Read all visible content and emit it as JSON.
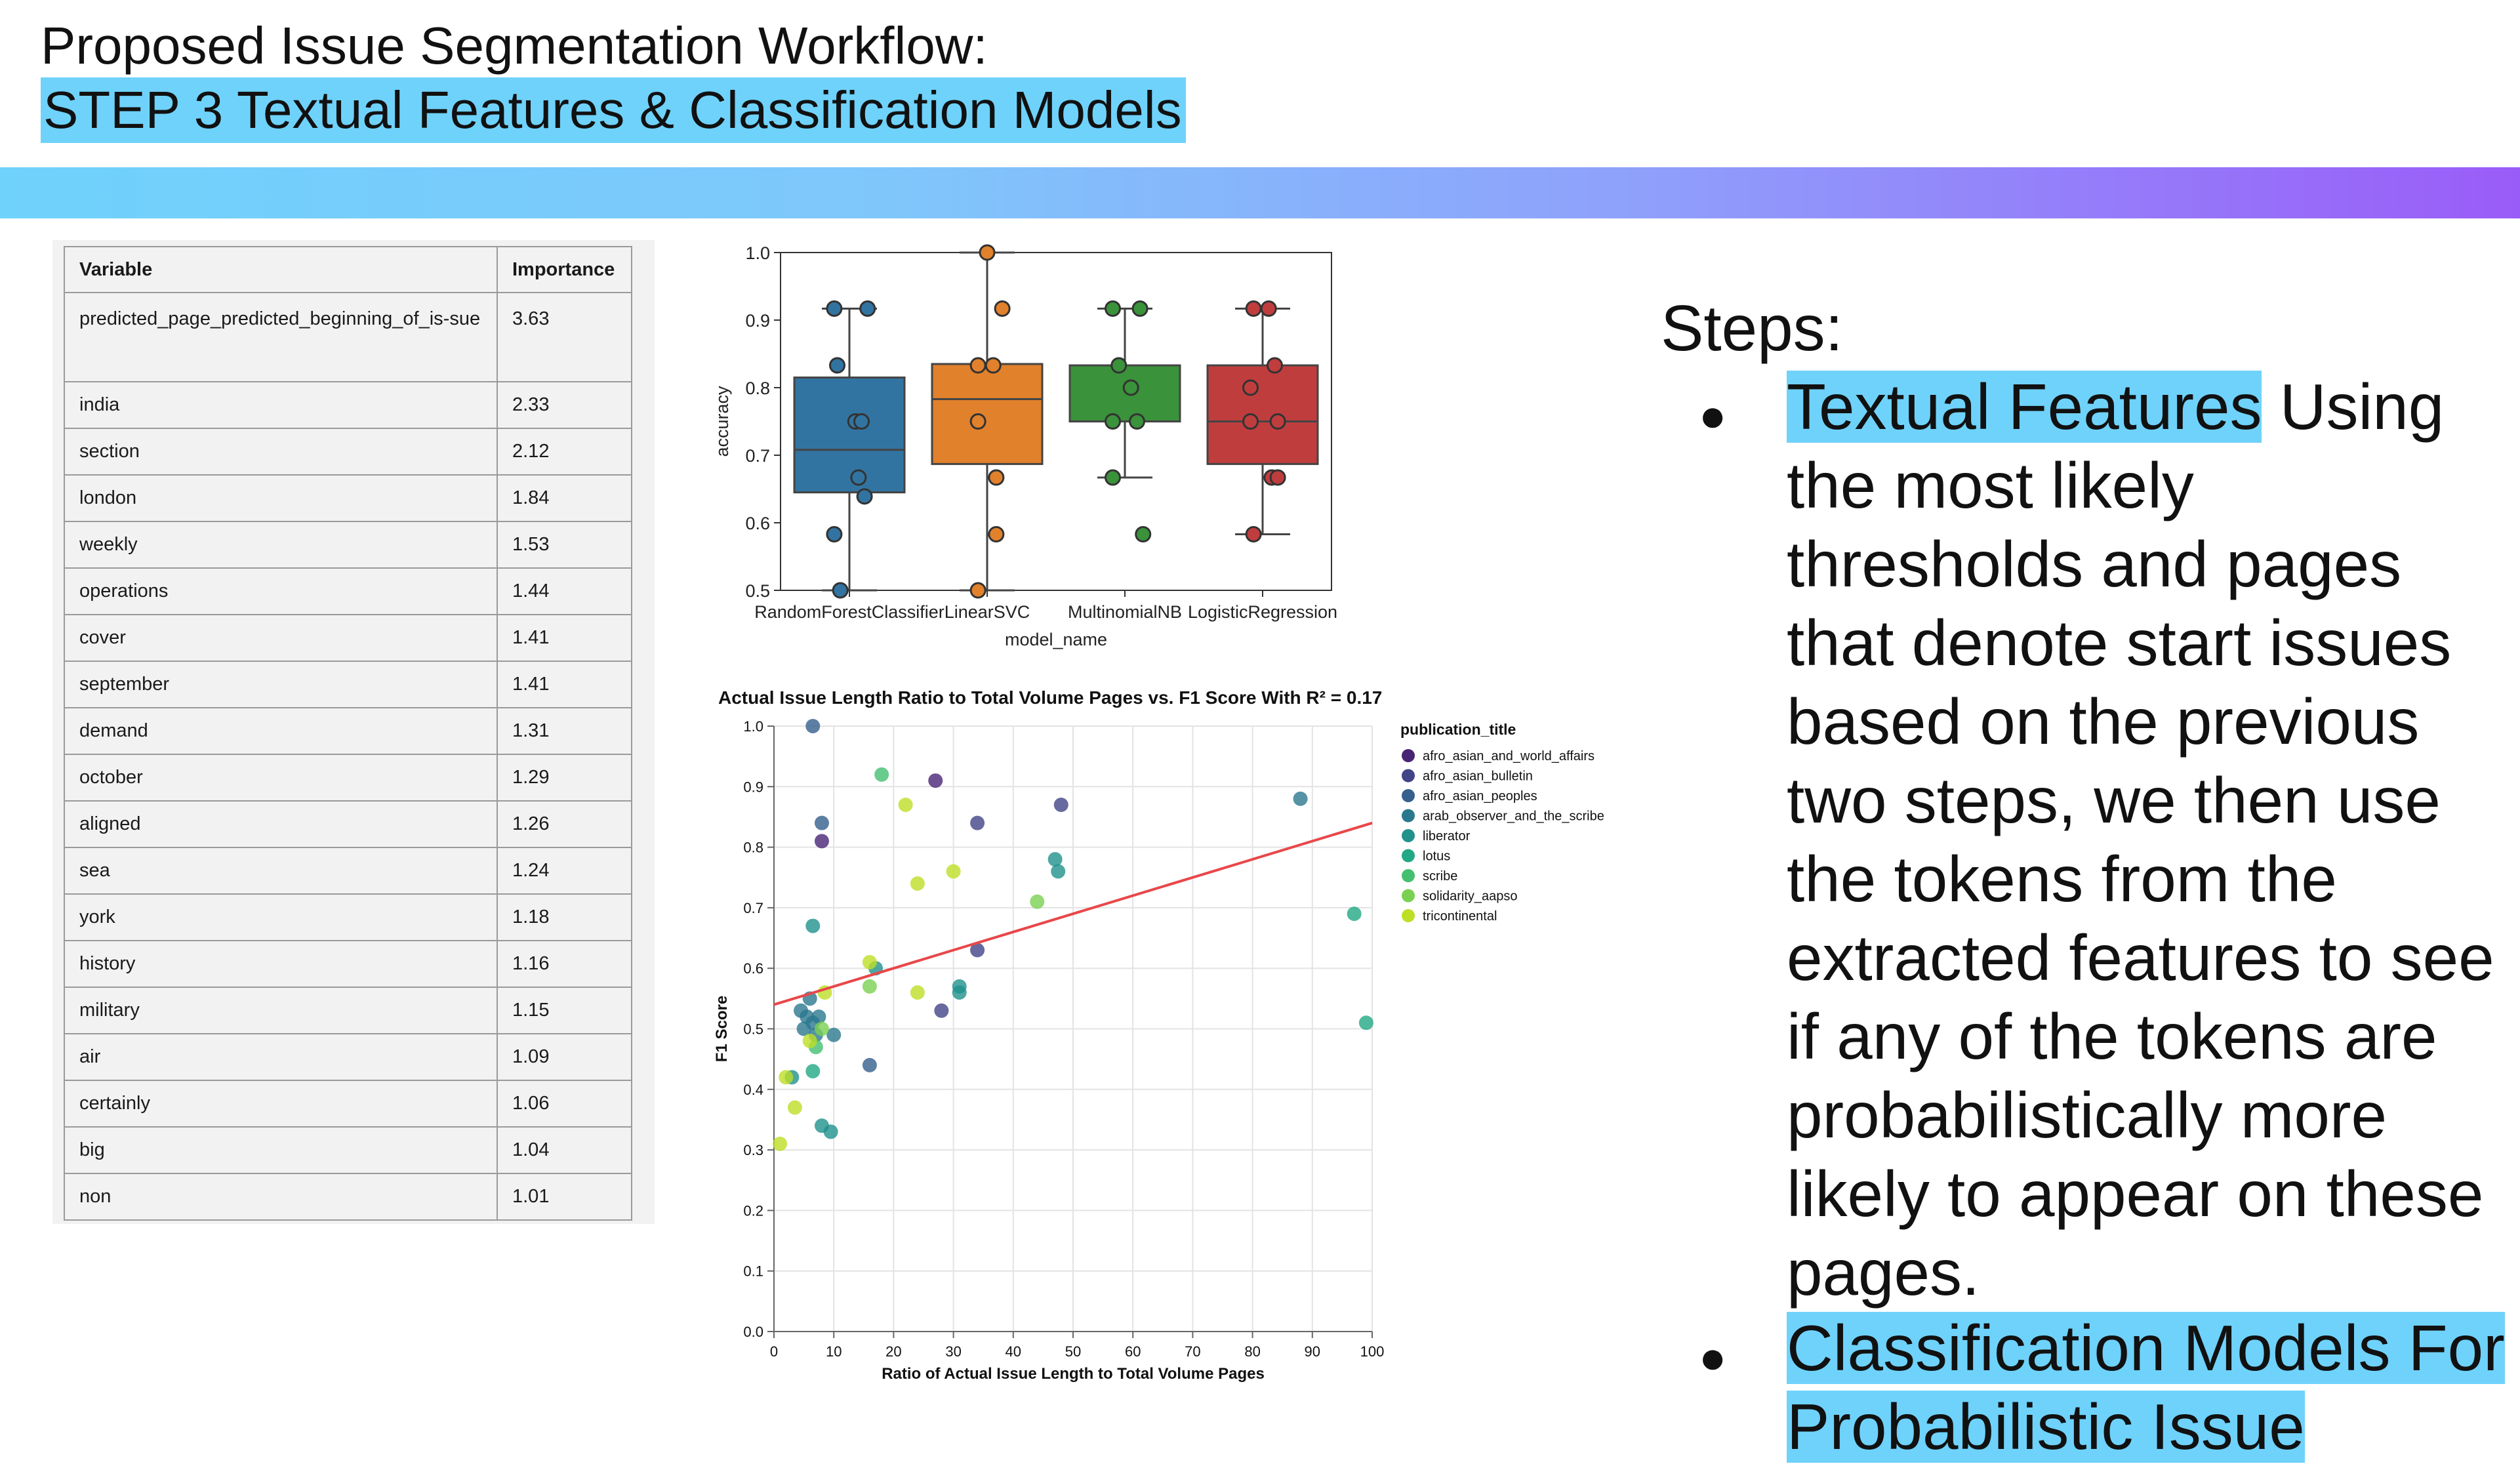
{
  "slide": {
    "title_line1": "Proposed Issue Segmentation Workflow:",
    "title_line2": "STEP 3 Textual Features & Classification Models"
  },
  "importance_table": {
    "headers": [
      "Variable",
      "Importance"
    ],
    "rows": [
      [
        "predicted_page_predicted_beginning_of_is-sue",
        "3.63"
      ],
      [
        "india",
        "2.33"
      ],
      [
        "section",
        "2.12"
      ],
      [
        "london",
        "1.84"
      ],
      [
        "weekly",
        "1.53"
      ],
      [
        "operations",
        "1.44"
      ],
      [
        "cover",
        "1.41"
      ],
      [
        "september",
        "1.41"
      ],
      [
        "demand",
        "1.31"
      ],
      [
        "october",
        "1.29"
      ],
      [
        "aligned",
        "1.26"
      ],
      [
        "sea",
        "1.24"
      ],
      [
        "york",
        "1.18"
      ],
      [
        "history",
        "1.16"
      ],
      [
        "military",
        "1.15"
      ],
      [
        "air",
        "1.09"
      ],
      [
        "certainly",
        "1.06"
      ],
      [
        "big",
        "1.04"
      ],
      [
        "non",
        "1.01"
      ]
    ]
  },
  "steps": {
    "heading": "Steps:",
    "bullet1_highlight": "Textual Features",
    "bullet1_text": " Using the most likely thresholds and pages that denote start issues based on the previous two steps, we then use the tokens from the extracted features to see if any of the tokens are probabilistically more likely to appear on these pages.",
    "bullet2_highlight": "Classification Models For Probabilistic Issue"
  },
  "colors": {
    "highlight": "#6fd2fb",
    "regression_line": "#e8474a"
  },
  "chart_data": [
    {
      "type": "box",
      "xlabel": "model_name",
      "ylabel": "accuracy",
      "ylim": [
        0.5,
        1.0
      ],
      "yticks": [
        "0.5",
        "0.6",
        "0.7",
        "0.8",
        "0.9",
        "1.0"
      ],
      "categories": [
        "RandomForestClassifier",
        "LinearSVC",
        "MultinomialNB",
        "LogisticRegression"
      ],
      "series": [
        {
          "name": "RandomForestClassifier",
          "color": "#3274a1",
          "q1": 0.645,
          "median": 0.708,
          "q3": 0.815,
          "whisker_low": 0.5,
          "whisker_high": 0.917,
          "points": [
            [
              -0.05,
              0.917
            ],
            [
              0.06,
              0.917
            ],
            [
              -0.04,
              0.833
            ],
            [
              0.02,
              0.75
            ],
            [
              0.04,
              0.75
            ],
            [
              0.03,
              0.667
            ],
            [
              0.05,
              0.639
            ],
            [
              -0.05,
              0.583
            ],
            [
              -0.03,
              0.5
            ]
          ]
        },
        {
          "name": "LinearSVC",
          "color": "#e1812c",
          "q1": 0.687,
          "median": 0.783,
          "q3": 0.835,
          "whisker_low": 0.5,
          "whisker_high": 1.0,
          "points": [
            [
              0.0,
              1.0
            ],
            [
              0.05,
              0.917
            ],
            [
              -0.03,
              0.833
            ],
            [
              0.02,
              0.833
            ],
            [
              -0.03,
              0.75
            ],
            [
              0.03,
              0.667
            ],
            [
              0.03,
              0.583
            ],
            [
              -0.03,
              0.5
            ]
          ]
        },
        {
          "name": "MultinomialNB",
          "color": "#3a923a",
          "q1": 0.75,
          "median": 0.75,
          "q3": 0.833,
          "whisker_low": 0.667,
          "whisker_high": 0.917,
          "points": [
            [
              -0.04,
              0.917
            ],
            [
              0.05,
              0.917
            ],
            [
              -0.02,
              0.833
            ],
            [
              0.02,
              0.8
            ],
            [
              -0.04,
              0.75
            ],
            [
              0.04,
              0.75
            ],
            [
              -0.04,
              0.667
            ],
            [
              0.06,
              0.583
            ]
          ]
        },
        {
          "name": "LogisticRegression",
          "color": "#c03d3e",
          "q1": 0.687,
          "median": 0.75,
          "q3": 0.833,
          "whisker_low": 0.583,
          "whisker_high": 0.917,
          "points": [
            [
              -0.03,
              0.917
            ],
            [
              0.02,
              0.917
            ],
            [
              0.04,
              0.833
            ],
            [
              -0.04,
              0.8
            ],
            [
              -0.04,
              0.75
            ],
            [
              0.05,
              0.75
            ],
            [
              0.03,
              0.667
            ],
            [
              0.05,
              0.667
            ],
            [
              -0.03,
              0.583
            ]
          ]
        }
      ]
    },
    {
      "type": "scatter",
      "title": "Actual Issue Length Ratio to Total Volume Pages vs. F1 Score With R² = 0.17",
      "xlabel": "Ratio of Actual Issue Length to Total Volume Pages",
      "ylabel": "F1 Score",
      "xlim": [
        0,
        100
      ],
      "ylim": [
        0.0,
        1.0
      ],
      "xticks": [
        "0",
        "10",
        "20",
        "30",
        "40",
        "50",
        "60",
        "70",
        "80",
        "90",
        "100"
      ],
      "yticks": [
        "0.0",
        "0.1",
        "0.2",
        "0.3",
        "0.4",
        "0.5",
        "0.6",
        "0.7",
        "0.8",
        "0.9",
        "1.0"
      ],
      "grid": true,
      "legend_title": "publication_title",
      "legend_position": "right",
      "series": [
        {
          "name": "afro_asian_and_world_affairs",
          "color": "#482475",
          "points": [
            [
              27,
              0.91
            ],
            [
              8,
              0.81
            ]
          ]
        },
        {
          "name": "afro_asian_bulletin",
          "color": "#414487",
          "points": [
            [
              48,
              0.87
            ],
            [
              34,
              0.84
            ],
            [
              28,
              0.53
            ],
            [
              34,
              0.63
            ]
          ]
        },
        {
          "name": "afro_asian_peoples",
          "color": "#355f8d",
          "points": [
            [
              6.5,
              1.0
            ],
            [
              8,
              0.84
            ],
            [
              16,
              0.44
            ]
          ]
        },
        {
          "name": "arab_observer_and_the_scribe",
          "color": "#2a788e",
          "points": [
            [
              88,
              0.88
            ],
            [
              5,
              0.5
            ],
            [
              5.5,
              0.52
            ],
            [
              6.5,
              0.51
            ],
            [
              7,
              0.49
            ],
            [
              4.5,
              0.53
            ],
            [
              10,
              0.49
            ],
            [
              6,
              0.55
            ],
            [
              7.5,
              0.52
            ]
          ]
        },
        {
          "name": "liberator",
          "color": "#21918c",
          "points": [
            [
              47,
              0.78
            ],
            [
              47.5,
              0.76
            ],
            [
              31,
              0.57
            ],
            [
              31,
              0.56
            ],
            [
              6.5,
              0.67
            ],
            [
              17,
              0.6
            ],
            [
              9.5,
              0.33
            ],
            [
              8,
              0.34
            ],
            [
              3,
              0.42
            ]
          ]
        },
        {
          "name": "lotus",
          "color": "#22a884",
          "points": [
            [
              97,
              0.69
            ],
            [
              99,
              0.51
            ],
            [
              6.5,
              0.43
            ]
          ]
        },
        {
          "name": "scribe",
          "color": "#44bf70",
          "points": [
            [
              18,
              0.92
            ],
            [
              7,
              0.47
            ]
          ]
        },
        {
          "name": "solidarity_aapso",
          "color": "#7ad151",
          "points": [
            [
              44,
              0.71
            ],
            [
              16,
              0.57
            ],
            [
              8,
              0.5
            ]
          ]
        },
        {
          "name": "tricontinental",
          "color": "#bddf26",
          "points": [
            [
              22,
              0.87
            ],
            [
              30,
              0.76
            ],
            [
              24,
              0.74
            ],
            [
              16,
              0.61
            ],
            [
              24,
              0.56
            ],
            [
              8.5,
              0.56
            ],
            [
              3.5,
              0.37
            ],
            [
              1,
              0.31
            ],
            [
              2,
              0.42
            ],
            [
              6,
              0.48
            ]
          ]
        }
      ],
      "regression": {
        "x": [
          0,
          100
        ],
        "y": [
          0.54,
          0.84
        ]
      }
    }
  ]
}
